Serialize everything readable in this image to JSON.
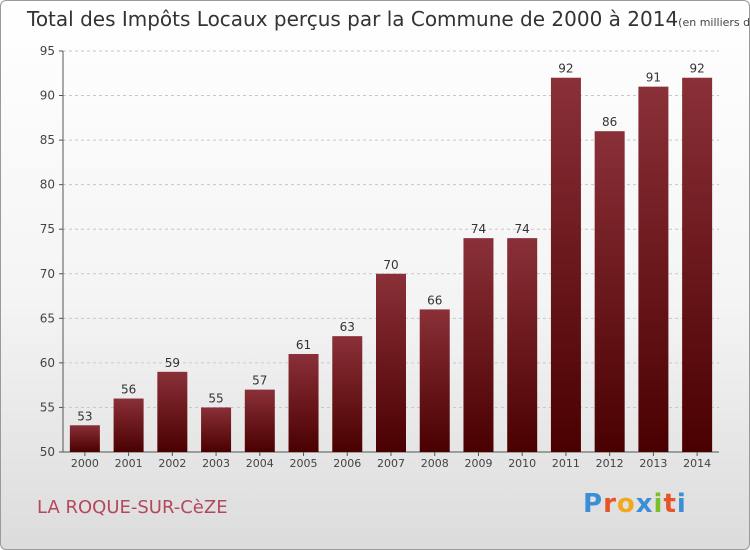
{
  "title": "Total des Impôts Locaux perçus par la Commune de 2000 à 2014",
  "title_unit": "(en milliers d'€)",
  "commune": "LA ROQUE-SUR-CèZE",
  "logo": {
    "text": "Proxiti",
    "letters": [
      "P",
      "r",
      "o",
      "x",
      "i",
      "t",
      "i"
    ],
    "colors": [
      "#3a8fd6",
      "#e8542a",
      "#f2a81c",
      "#3a8fd6",
      "#7bbf2a",
      "#e8542a",
      "#3a8fd6"
    ]
  },
  "colors": {
    "bar_top": "#8a3038",
    "bar_bottom": "#4a0000",
    "accent": "#b5475d"
  },
  "chart_data": {
    "type": "bar",
    "categories": [
      "2000",
      "2001",
      "2002",
      "2003",
      "2004",
      "2005",
      "2006",
      "2007",
      "2008",
      "2009",
      "2010",
      "2011",
      "2012",
      "2013",
      "2014"
    ],
    "values": [
      53,
      56,
      59,
      55,
      57,
      61,
      63,
      70,
      66,
      74,
      74,
      92,
      86,
      91,
      92
    ],
    "ylim": [
      50,
      95
    ],
    "yticks": [
      50,
      55,
      60,
      65,
      70,
      75,
      80,
      85,
      90,
      95
    ],
    "grid": "horizontal dashed",
    "data_labels": true
  }
}
